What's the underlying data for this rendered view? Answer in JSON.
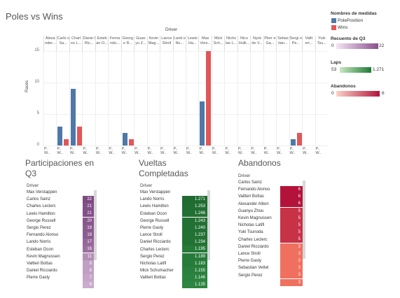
{
  "title": "Poles vs Wins",
  "chart_data": {
    "type": "bar",
    "xlabel_group": "Driver",
    "ylabel": "Races",
    "ylim": [
      0,
      15
    ],
    "yticks": [
      "0",
      "5",
      "10",
      "15"
    ],
    "categories": [
      "Alexa nder...",
      "Carlo s Sa...",
      "Charl es L...",
      "Danie l Ric...",
      "Esteb an O...",
      "Ferna ndo...",
      "Georg e R...",
      "Guan yu Z...",
      "Kevin Mag...",
      "Lance Stroll",
      "Land o No...",
      "Lewis Ha...",
      "Max Vers...",
      "Mick Sch...",
      "Nicho las L...",
      "Nico Hulk...",
      "Nyck de V...",
      "Pierr e Ga...",
      "Sebas tian...",
      "Sergi o Pe...",
      "Valtt eri...",
      "Yuki Tsu..."
    ],
    "series": [
      {
        "name": "PolePosition",
        "color": "#4e79a7",
        "values": [
          0,
          3,
          9,
          0,
          0,
          0,
          2,
          0,
          0,
          0,
          0,
          0,
          7,
          0,
          0,
          0,
          0,
          0,
          0,
          1,
          0,
          0
        ]
      },
      {
        "name": "Wins",
        "color": "#e15759",
        "values": [
          0,
          1,
          3,
          0,
          0,
          0,
          1,
          0,
          0,
          0,
          0,
          0,
          15,
          0,
          0,
          0,
          0,
          0,
          0,
          2,
          0,
          0
        ]
      }
    ],
    "xtick_label": "P.. W.."
  },
  "legend": {
    "measures_title": "Nombres de medidas",
    "items": [
      {
        "label": "PolePosition",
        "color": "#4e79a7"
      },
      {
        "label": "Wins",
        "color": "#e15759"
      }
    ],
    "q3_title": "Recuento de Q3",
    "q3_min": "0",
    "q3_max": "22",
    "laps_title": "Laps",
    "laps_min": "53",
    "laps_max": "1.271",
    "ab_title": "Abandonos",
    "ab_min": "0",
    "ab_max": "6"
  },
  "tables": {
    "q3": {
      "title_line1": "Participaciones en",
      "title_line2": "Q3",
      "header": "Driver",
      "rows": [
        [
          "Max Verstappen",
          "22"
        ],
        [
          "Carlos Sainz",
          "21"
        ],
        [
          "Charles Leclerc",
          "21"
        ],
        [
          "Lewis Hamilton",
          "20"
        ],
        [
          "George Russell",
          "19"
        ],
        [
          "Sergio Perez",
          "19"
        ],
        [
          "Fernando Alonso",
          "17"
        ],
        [
          "Lando Norris",
          "16"
        ],
        [
          "Esteban Ocon",
          "11"
        ],
        [
          "Kevin Magnussen",
          "8"
        ],
        [
          "Valtteri Bottas",
          "8"
        ],
        [
          "Daniel Ricciardo",
          "7"
        ],
        [
          "Pierre Gasly",
          "6"
        ]
      ]
    },
    "laps": {
      "title_line1": "Vueltas",
      "title_line2": "Completadas",
      "header": "Driver",
      "rows": [
        [
          "Max Verstappen",
          "1.271"
        ],
        [
          "Lando Norris",
          "1.253"
        ],
        [
          "Lewis Hamilton",
          "1.246"
        ],
        [
          "Esteban Ocon",
          "1.243"
        ],
        [
          "George Russell",
          "1.240"
        ],
        [
          "Pierre Gasly",
          "1.237"
        ],
        [
          "Lance Stroll",
          "1.234"
        ],
        [
          "Daniel Ricciardo",
          "1.195"
        ],
        [
          "Charles Leclerc",
          "1.189"
        ],
        [
          "Sergio Perez",
          "1.183"
        ],
        [
          "Nicholas Latifi",
          "1.155"
        ],
        [
          "Mick Schumacher",
          "1.146"
        ],
        [
          "Valtteri Bottas",
          "1.135"
        ]
      ]
    },
    "ab": {
      "title_line1": "Abandonos",
      "header": "Driver",
      "rows": [
        [
          "Carlos Sainz",
          "6"
        ],
        [
          "Fernando Alonso",
          "6"
        ],
        [
          "Valtteri Bottas",
          "6"
        ],
        [
          "Alexander Albon",
          "5"
        ],
        [
          "Guanyu Zhou",
          "5"
        ],
        [
          "Kevin Magnussen",
          "5"
        ],
        [
          "Nicholas Latifi",
          "5"
        ],
        [
          "Yuki Tsunoda",
          "5"
        ],
        [
          "Charles Leclerc",
          "3"
        ],
        [
          "Daniel Ricciardo",
          "3"
        ],
        [
          "Lance Stroll",
          "3"
        ],
        [
          "Pierre Gasly",
          "3"
        ],
        [
          "Sebastian Vettel",
          "3"
        ],
        [
          "Sergio Perez",
          "3"
        ]
      ]
    }
  }
}
